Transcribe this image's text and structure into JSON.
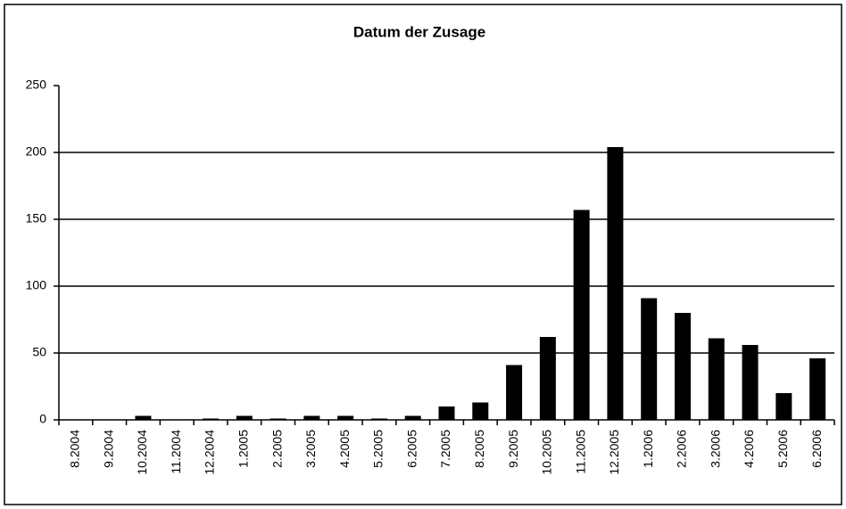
{
  "chart_data": {
    "type": "bar",
    "title": "Datum der Zusage",
    "categories": [
      "8.2004",
      "9.2004",
      "10.2004",
      "11.2004",
      "12.2004",
      "1.2005",
      "2.2005",
      "3.2005",
      "4.2005",
      "5.2005",
      "6.2005",
      "7.2005",
      "8.2005",
      "9.2005",
      "10.2005",
      "11.2005",
      "12.2005",
      "1.2006",
      "2.2006",
      "3.2006",
      "4.2006",
      "5.2006",
      "6.2006"
    ],
    "values": [
      0,
      0,
      3,
      0,
      1,
      3,
      1,
      3,
      3,
      1,
      3,
      10,
      13,
      41,
      62,
      157,
      204,
      91,
      80,
      61,
      56,
      20,
      46
    ],
    "color": "#000000",
    "ylim": [
      0,
      250
    ],
    "yticks": [
      0,
      50,
      100,
      150,
      200,
      250
    ],
    "grid": true
  }
}
